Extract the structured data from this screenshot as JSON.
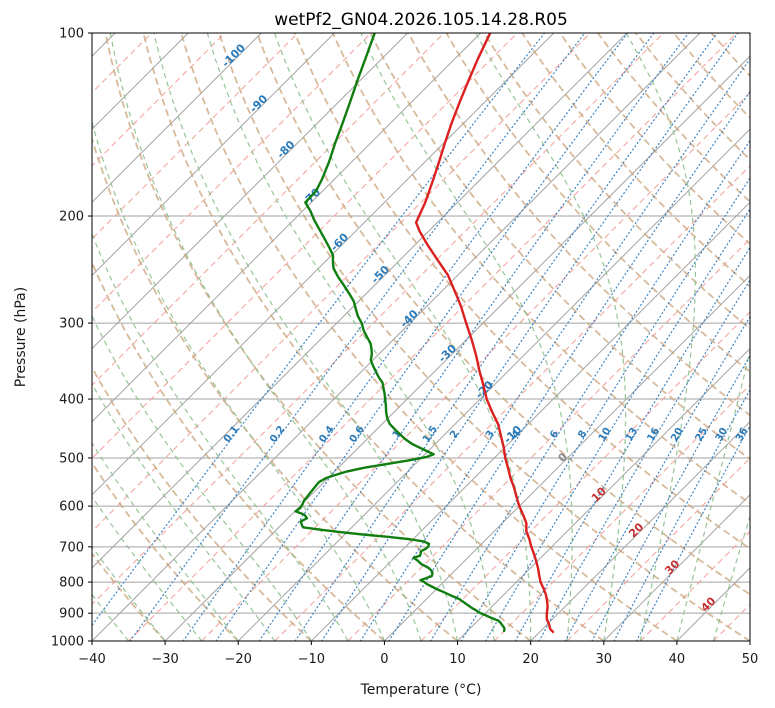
{
  "title": "wetPf2_GN04.2026.105.14.28.R05",
  "axes": {
    "xlabel": "Temperature (°C)",
    "ylabel": "Pressure (hPa)",
    "x_ticks": [
      -40,
      -30,
      -20,
      -10,
      0,
      10,
      20,
      30,
      40,
      50
    ],
    "y_ticks": [
      100,
      200,
      300,
      400,
      500,
      600,
      700,
      800,
      900,
      1000
    ],
    "xlim": [
      -40,
      50
    ],
    "ylim_hpa": [
      1000,
      100
    ],
    "skew_deg": 45,
    "grid": true
  },
  "chart_data": {
    "type": "line",
    "variant": "skew-t-log-p",
    "series": [
      {
        "name": "temperature",
        "color": "#dc1f1f",
        "width": 2.4,
        "points": [
          [
            100,
            -68.7
          ],
          [
            110,
            -66.9
          ],
          [
            120,
            -65.1
          ],
          [
            130,
            -63.4
          ],
          [
            141,
            -61.6
          ],
          [
            152,
            -59.8
          ],
          [
            164,
            -57.9
          ],
          [
            176,
            -56.2
          ],
          [
            190,
            -54.4
          ],
          [
            205,
            -52.9
          ],
          [
            212,
            -51.2
          ],
          [
            223,
            -48.3
          ],
          [
            236,
            -44.9
          ],
          [
            250,
            -41.4
          ],
          [
            265,
            -38.4
          ],
          [
            281,
            -35.4
          ],
          [
            300,
            -32.3
          ],
          [
            320,
            -29.2
          ],
          [
            340,
            -26.4
          ],
          [
            360,
            -23.9
          ],
          [
            380,
            -21.4
          ],
          [
            400,
            -19.1
          ],
          [
            420,
            -16.6
          ],
          [
            440,
            -14.1
          ],
          [
            460,
            -12.1
          ],
          [
            480,
            -10.2
          ],
          [
            500,
            -8.5
          ],
          [
            520,
            -6.7
          ],
          [
            540,
            -5.0
          ],
          [
            560,
            -3.2
          ],
          [
            580,
            -1.6
          ],
          [
            600,
            0.0
          ],
          [
            620,
            1.7
          ],
          [
            640,
            3.3
          ],
          [
            660,
            4.4
          ],
          [
            680,
            5.9
          ],
          [
            700,
            7.2
          ],
          [
            720,
            8.6
          ],
          [
            740,
            9.9
          ],
          [
            760,
            11.1
          ],
          [
            780,
            12.2
          ],
          [
            800,
            13.3
          ],
          [
            820,
            14.6
          ],
          [
            840,
            15.8
          ],
          [
            860,
            16.8
          ],
          [
            880,
            17.7
          ],
          [
            900,
            18.4
          ],
          [
            920,
            19.2
          ],
          [
            940,
            20.3
          ],
          [
            955,
            21.0
          ],
          [
            966,
            21.8
          ]
        ]
      },
      {
        "name": "dewpoint",
        "color": "#0f7d0f",
        "width": 2.4,
        "points": [
          [
            100,
            -84.5
          ],
          [
            110,
            -82.3
          ],
          [
            120,
            -80.3
          ],
          [
            130,
            -78.4
          ],
          [
            141,
            -76.5
          ],
          [
            152,
            -74.8
          ],
          [
            163,
            -73.1
          ],
          [
            174,
            -71.7
          ],
          [
            182,
            -70.9
          ],
          [
            190,
            -70.8
          ],
          [
            196,
            -69.0
          ],
          [
            203,
            -67.2
          ],
          [
            210,
            -65.3
          ],
          [
            218,
            -63.2
          ],
          [
            226,
            -61.2
          ],
          [
            232,
            -59.8
          ],
          [
            238,
            -58.9
          ],
          [
            244,
            -57.9
          ],
          [
            252,
            -56.1
          ],
          [
            260,
            -54.2
          ],
          [
            268,
            -52.4
          ],
          [
            276,
            -50.7
          ],
          [
            284,
            -49.4
          ],
          [
            292,
            -48.1
          ],
          [
            300,
            -46.6
          ],
          [
            308,
            -45.4
          ],
          [
            316,
            -44.0
          ],
          [
            324,
            -42.6
          ],
          [
            331,
            -41.7
          ],
          [
            338,
            -40.9
          ],
          [
            345,
            -40.3
          ],
          [
            352,
            -39.3
          ],
          [
            360,
            -38.1
          ],
          [
            368,
            -36.9
          ],
          [
            376,
            -35.6
          ],
          [
            384,
            -34.7
          ],
          [
            392,
            -33.8
          ],
          [
            400,
            -33.0
          ],
          [
            410,
            -32.0
          ],
          [
            420,
            -31.1
          ],
          [
            430,
            -30.1
          ],
          [
            440,
            -28.9
          ],
          [
            450,
            -27.3
          ],
          [
            458,
            -26.0
          ],
          [
            466,
            -24.7
          ],
          [
            474,
            -23.2
          ],
          [
            481,
            -21.6
          ],
          [
            487,
            -20.2
          ],
          [
            493,
            -18.8
          ],
          [
            498,
            -19.4
          ],
          [
            505,
            -21.5
          ],
          [
            512,
            -24.0
          ],
          [
            519,
            -26.5
          ],
          [
            526,
            -28.3
          ],
          [
            533,
            -29.4
          ],
          [
            540,
            -30.3
          ],
          [
            548,
            -30.7
          ],
          [
            556,
            -30.6
          ],
          [
            564,
            -30.5
          ],
          [
            572,
            -30.4
          ],
          [
            580,
            -30.3
          ],
          [
            588,
            -30.2
          ],
          [
            596,
            -29.9
          ],
          [
            604,
            -29.7
          ],
          [
            612,
            -29.9
          ],
          [
            620,
            -28.2
          ],
          [
            628,
            -27.4
          ],
          [
            636,
            -27.8
          ],
          [
            644,
            -27.2
          ],
          [
            650,
            -26.7
          ],
          [
            656,
            -24.0
          ],
          [
            662,
            -21.0
          ],
          [
            668,
            -17.5
          ],
          [
            674,
            -13.8
          ],
          [
            680,
            -10.5
          ],
          [
            686,
            -8.2
          ],
          [
            692,
            -7.2
          ],
          [
            700,
            -6.9
          ],
          [
            706,
            -7.0
          ],
          [
            712,
            -7.3
          ],
          [
            718,
            -7.0
          ],
          [
            724,
            -6.8
          ],
          [
            730,
            -7.4
          ],
          [
            736,
            -6.6
          ],
          [
            742,
            -6.0
          ],
          [
            748,
            -5.4
          ],
          [
            752,
            -4.8
          ],
          [
            758,
            -4.0
          ],
          [
            764,
            -3.4
          ],
          [
            770,
            -2.9
          ],
          [
            776,
            -2.6
          ],
          [
            782,
            -2.4
          ],
          [
            788,
            -2.9
          ],
          [
            794,
            -3.4
          ],
          [
            800,
            -2.6
          ],
          [
            806,
            -2.0
          ],
          [
            812,
            -1.2
          ],
          [
            818,
            -0.4
          ],
          [
            824,
            0.4
          ],
          [
            830,
            1.3
          ],
          [
            836,
            2.1
          ],
          [
            842,
            2.9
          ],
          [
            848,
            3.8
          ],
          [
            854,
            4.6
          ],
          [
            860,
            5.2
          ],
          [
            866,
            5.8
          ],
          [
            872,
            6.4
          ],
          [
            878,
            7.0
          ],
          [
            884,
            7.6
          ],
          [
            890,
            8.3
          ],
          [
            896,
            8.9
          ],
          [
            902,
            9.6
          ],
          [
            908,
            10.4
          ],
          [
            914,
            11.2
          ],
          [
            920,
            12.0
          ],
          [
            926,
            12.8
          ],
          [
            932,
            13.3
          ],
          [
            938,
            13.7
          ],
          [
            944,
            14.1
          ],
          [
            950,
            14.5
          ],
          [
            956,
            14.8
          ],
          [
            963,
            15.0
          ]
        ]
      }
    ],
    "isotherms": {
      "solid": {
        "start": -160,
        "end": 50,
        "step": 10,
        "color": "#a3a3a3",
        "width": 1
      },
      "dashed": {
        "start": -155,
        "end": 45,
        "step": 10,
        "color": "#f2a19a",
        "width": 1.1
      }
    },
    "grid_color": "#a3a3a3",
    "isotherm_labels": {
      "neg_color": "#2b7bba",
      "zero_color": "#8a8a8a",
      "pos_color": "#c53030",
      "items": [
        {
          "t": -100,
          "p": 110
        },
        {
          "t": -90,
          "p": 132
        },
        {
          "t": -80,
          "p": 157
        },
        {
          "t": -70,
          "p": 188
        },
        {
          "t": -60,
          "p": 223
        },
        {
          "t": -50,
          "p": 252
        },
        {
          "t": -40,
          "p": 298
        },
        {
          "t": -30,
          "p": 340
        },
        {
          "t": -20,
          "p": 390
        },
        {
          "t": -10,
          "p": 462
        },
        {
          "t": 0,
          "p": 504
        },
        {
          "t": 10,
          "p": 580
        },
        {
          "t": 20,
          "p": 664
        },
        {
          "t": 30,
          "p": 764
        },
        {
          "t": 40,
          "p": 879
        }
      ]
    },
    "mixing_ratio_lines": {
      "values": [
        0.1,
        0.2,
        0.4,
        0.6,
        1,
        1.5,
        2,
        3,
        4,
        6,
        8,
        10,
        13,
        16,
        20,
        25,
        30,
        36
      ],
      "color": "#3c83c0",
      "label_color": "#2b7bba",
      "label_pressure": 460
    },
    "dry_adiabats": {
      "start": -60,
      "end": 240,
      "step": 10,
      "color": "#c9a379"
    },
    "moist_adiabats": {
      "start": -45,
      "end": 45,
      "step": 5,
      "color": "#8cbe8c"
    }
  }
}
